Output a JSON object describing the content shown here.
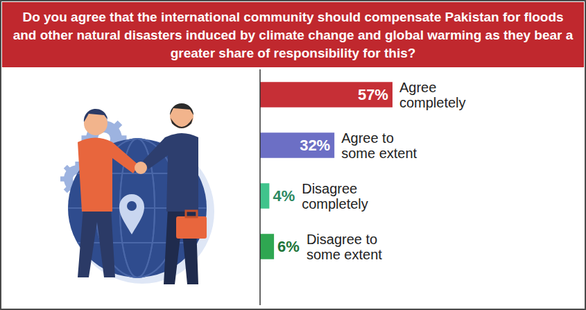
{
  "chart_data": {
    "type": "bar",
    "orientation": "horizontal",
    "title": "Do you agree that the international community should compensate Pakistan for floods and other natural disasters induced by climate change and global warming as they bear a greater share of responsibility for this?",
    "categories": [
      "Agree completely",
      "Agree to some extent",
      "Disagree completely",
      "Disagree to some extent"
    ],
    "values": [
      57,
      32,
      4,
      6
    ],
    "value_labels": [
      "57%",
      "32%",
      "4%",
      "6%"
    ],
    "colors": [
      "#c62f36",
      "#6c6fc5",
      "#40c48c",
      "#2fa751"
    ],
    "data_labels": true,
    "xlim": [
      0,
      100
    ]
  }
}
